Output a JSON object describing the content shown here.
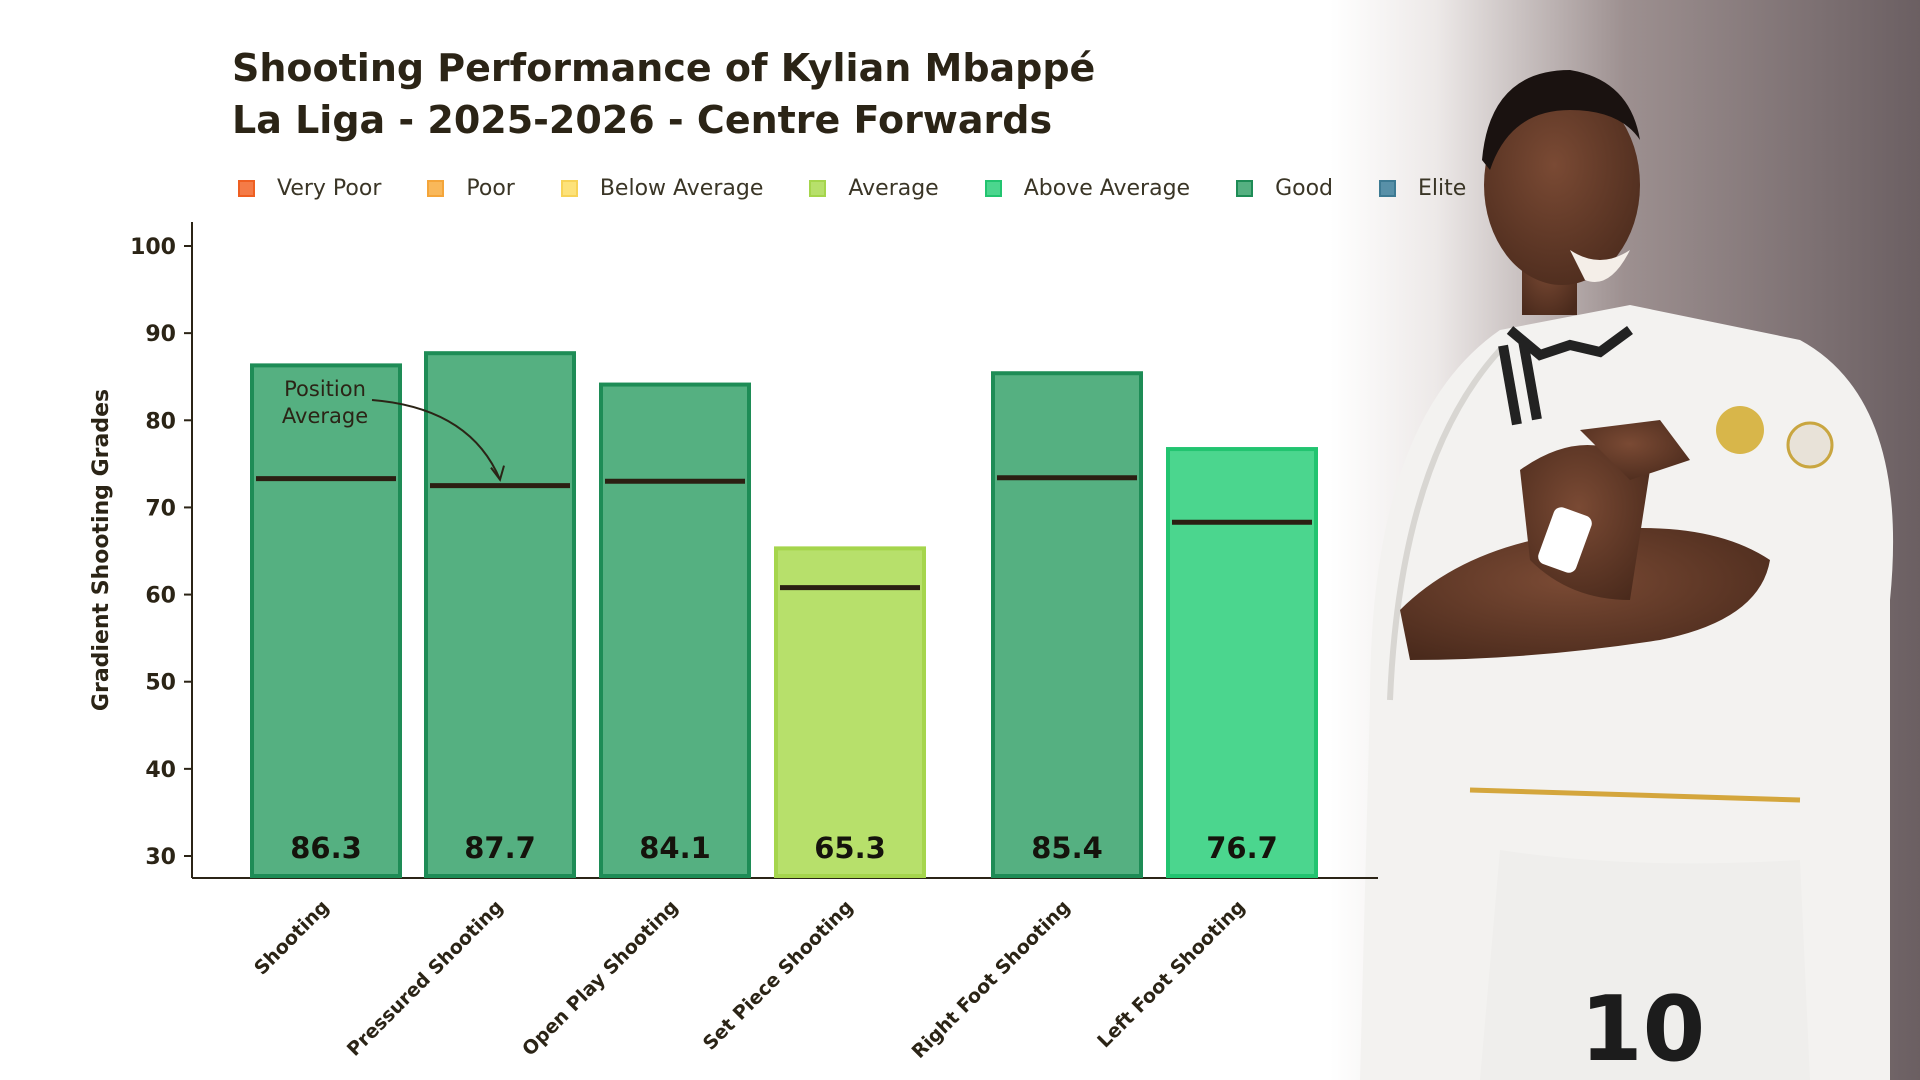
{
  "chart_data": {
    "type": "bar",
    "title_lines": [
      "Shooting Performance of Kylian Mbappé",
      "La Liga - 2025-2026 - Centre Forwards"
    ],
    "ylabel": "Gradient Shooting Grades",
    "xlabel": "",
    "ylim": [
      30,
      100
    ],
    "yticks": [
      30,
      40,
      50,
      60,
      70,
      80,
      90,
      100
    ],
    "grid": false,
    "legend_position": "top",
    "legend": [
      {
        "label": "Very Poor",
        "fill": "#f47b47",
        "stroke": "#ee5f22"
      },
      {
        "label": "Poor",
        "fill": "#f9b85a",
        "stroke": "#f4a53a"
      },
      {
        "label": "Below Average",
        "fill": "#fde27a",
        "stroke": "#f7d358"
      },
      {
        "label": "Average",
        "fill": "#b7e06b",
        "stroke": "#a5d54c"
      },
      {
        "label": "Above Average",
        "fill": "#4bd68e",
        "stroke": "#22c470"
      },
      {
        "label": "Good",
        "fill": "#55b081",
        "stroke": "#1e8c56"
      },
      {
        "label": "Elite",
        "fill": "#5890a8",
        "stroke": "#3d7a93"
      }
    ],
    "categories": [
      "Shooting",
      "Pressured Shooting",
      "Open Play Shooting",
      "Set Piece Shooting",
      "Right Foot Shooting",
      "Left Foot Shooting"
    ],
    "values": [
      86.3,
      87.7,
      84.1,
      65.3,
      85.4,
      76.7
    ],
    "value_labels": [
      "86.3",
      "87.7",
      "84.1",
      "65.3",
      "85.4",
      "76.7"
    ],
    "position_average": [
      73.3,
      72.5,
      73.0,
      60.8,
      73.4,
      68.3
    ],
    "tiers": [
      "Good",
      "Good",
      "Good",
      "Average",
      "Good",
      "Above Average"
    ],
    "annotation": {
      "lines": [
        "Position",
        "Average"
      ],
      "points_to": "Pressured Shooting"
    }
  },
  "photo": {
    "description_icon": "player-photo"
  }
}
